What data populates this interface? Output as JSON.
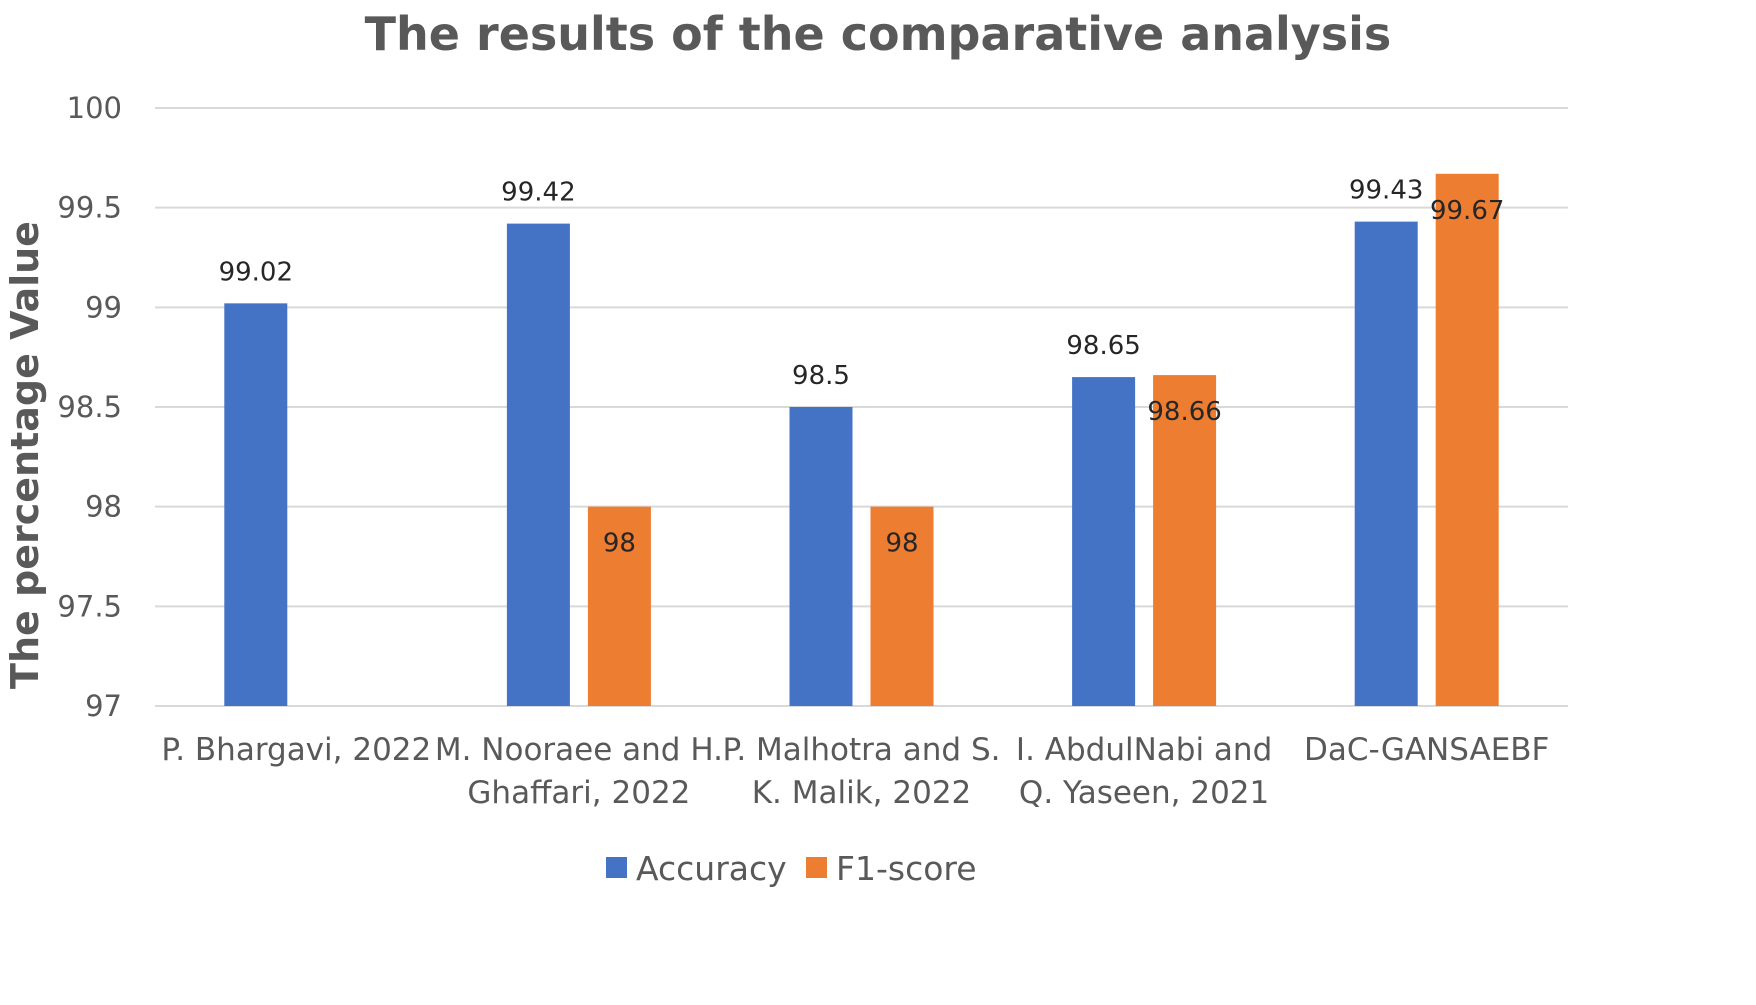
{
  "chart_data": {
    "type": "bar",
    "title": "The results of the comparative analysis",
    "xlabel": "",
    "ylabel": "The percentage Value",
    "ylim": [
      97,
      100
    ],
    "yticks": [
      "97",
      "97.5",
      "98",
      "98.5",
      "99",
      "99.5",
      "100"
    ],
    "categories": [
      [
        "P. Bhargavi, 2022"
      ],
      [
        "M. Nooraee and H.",
        "Ghaffari, 2022"
      ],
      [
        "P. Malhotra and S.",
        "K. Malik, 2022"
      ],
      [
        "I. AbdulNabi and",
        "Q. Yaseen, 2021"
      ],
      [
        "DaC-GANSAEBF"
      ]
    ],
    "series": [
      {
        "name": "Accuracy",
        "color": "#4472c4",
        "values": [
          99.02,
          99.42,
          98.5,
          98.65,
          99.43
        ],
        "labels": [
          "99.02",
          "99.42",
          "98.5",
          "98.65",
          "99.43"
        ]
      },
      {
        "name": "F1-score",
        "color": "#ed7d31",
        "values": [
          null,
          98,
          98,
          98.66,
          99.67
        ],
        "labels": [
          "",
          "98",
          "98",
          "98.66",
          "99.67"
        ]
      }
    ],
    "legend": "bottom",
    "grid": true
  }
}
